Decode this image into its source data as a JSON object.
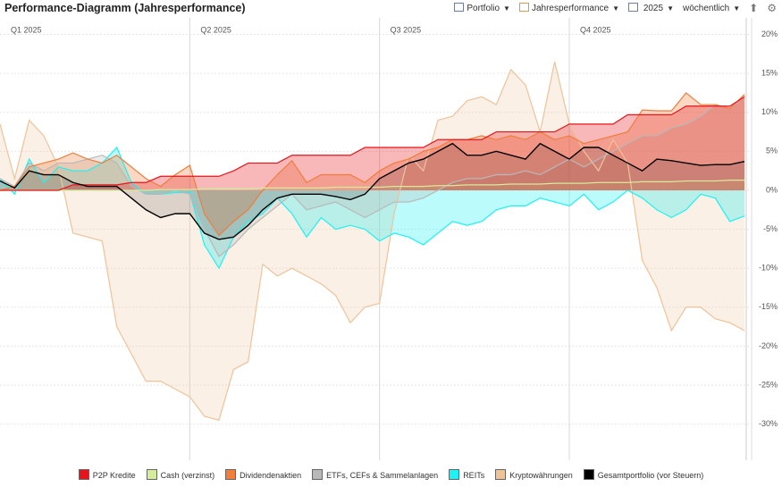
{
  "toolbar": [
    "Portfolio",
    "Jahresperformance",
    "2025",
    "wöchentlich"
  ],
  "chart_data": {
    "type": "area-line",
    "title": "Performance-Diagramm (Jahresperformance)",
    "categories": [
      "Q1 2025",
      null,
      null,
      null,
      null,
      null,
      null,
      null,
      null,
      null,
      null,
      null,
      null,
      "Q2 2025",
      null,
      null,
      null,
      null,
      null,
      null,
      null,
      null,
      null,
      null,
      null,
      null,
      "Q3 2025",
      null,
      null,
      null,
      null,
      null,
      null,
      null,
      null,
      null,
      null,
      null,
      null,
      "Q4 2025",
      null,
      null,
      null,
      null,
      null,
      null,
      null,
      null,
      null,
      null,
      null,
      null
    ],
    "ylim": [
      -34.6,
      21.6
    ],
    "yticks": [
      {
        "value": 20,
        "label": "20%"
      },
      {
        "value": 15,
        "label": "15%"
      },
      {
        "value": 10,
        "label": "10%"
      },
      {
        "value": 5,
        "label": "5%"
      },
      {
        "value": 0,
        "label": "0%"
      },
      {
        "value": -5,
        "label": "-5%"
      },
      {
        "value": -10,
        "label": "-10%"
      },
      {
        "value": -15,
        "label": "-15%"
      },
      {
        "value": -20,
        "label": "-20%"
      },
      {
        "value": -25,
        "label": "-25%"
      },
      {
        "value": -30,
        "label": "-30%"
      }
    ],
    "grid": true,
    "series": [
      {
        "name": "P2P Kredite",
        "color": "#e8141b",
        "values": [
          0,
          0,
          0,
          0,
          0,
          0.7,
          0.7,
          0.7,
          0.7,
          1,
          1,
          1.8,
          1.8,
          1.8,
          1.8,
          1.8,
          2.5,
          3.5,
          3.5,
          3.5,
          4.5,
          4.5,
          4.5,
          4.5,
          4.5,
          5.5,
          5.5,
          5.5,
          5.5,
          5.5,
          6.5,
          6.5,
          6.5,
          6.5,
          7.5,
          7.5,
          7.5,
          7.5,
          7.5,
          8.5,
          8.5,
          8.5,
          8.5,
          9.7,
          9.7,
          9.7,
          9.7,
          10.8,
          10.8,
          10.8,
          10.8,
          12
        ]
      },
      {
        "name": "Cash (verzinst)",
        "color": "#d4ec9c",
        "values": [
          0,
          0,
          0,
          0,
          0,
          0,
          0,
          0,
          0,
          0,
          0,
          0.1,
          0.1,
          0.1,
          0.2,
          0.2,
          0.2,
          0.2,
          0.3,
          0.3,
          0.3,
          0.3,
          0.3,
          0.4,
          0.4,
          0.4,
          0.4,
          0.5,
          0.5,
          0.5,
          0.6,
          0.6,
          0.7,
          0.7,
          0.7,
          0.8,
          0.8,
          0.8,
          0.9,
          0.9,
          0.9,
          1,
          1,
          1,
          1.1,
          1.1,
          1.1,
          1.2,
          1.2,
          1.2,
          1.3,
          1.3
        ]
      },
      {
        "name": "Dividendenaktien",
        "color": "#f07d3c",
        "values": [
          0,
          0.5,
          3,
          3.5,
          4,
          4.8,
          4,
          3.5,
          4.5,
          3,
          1.5,
          0.5,
          2,
          3.2,
          -3,
          -5.8,
          -4,
          -2.5,
          0,
          2,
          3.8,
          1,
          2,
          2,
          2,
          1,
          2.5,
          3.5,
          4,
          5,
          5.5,
          6.5,
          6.5,
          7,
          6.5,
          7,
          6.5,
          7.5,
          6.5,
          7,
          6,
          6.5,
          7,
          7.5,
          10.3,
          10.2,
          10.2,
          12.5,
          11,
          11,
          10.5,
          12.3
        ]
      },
      {
        "name": "ETFs, CEFs & Sammelanlagen",
        "color": "#b8b8b8",
        "values": [
          1.5,
          0.5,
          3.5,
          2.5,
          3.5,
          3.5,
          4,
          4.5,
          3.5,
          0.5,
          -0.5,
          -0.5,
          0,
          -0.5,
          -5,
          -8.5,
          -7,
          -5,
          -3.5,
          -2,
          -0.5,
          -2.5,
          -2,
          -1.5,
          -2.5,
          -3.5,
          -2.5,
          -1.5,
          -1.5,
          -1,
          0,
          1,
          1.5,
          1.5,
          2,
          2,
          2.5,
          2,
          3,
          4,
          3,
          4,
          5,
          6,
          7,
          7,
          8,
          8.5,
          9.5,
          11,
          10.5,
          12
        ]
      },
      {
        "name": "REITs",
        "color": "#1ef2f2",
        "values": [
          1.5,
          -0.5,
          4,
          1,
          3,
          2.5,
          2.5,
          3.5,
          5.5,
          1,
          -0.5,
          -0.5,
          -0.3,
          -0.3,
          -7,
          -10,
          -6,
          -4,
          -3,
          -1,
          -3,
          -6,
          -3.5,
          -5,
          -4.5,
          -5,
          -6.5,
          -5.5,
          -6,
          -7,
          -5.5,
          -4,
          -4.5,
          -4,
          -2.5,
          -2,
          -2,
          -1,
          -1.5,
          -2,
          -0.5,
          -2.5,
          -1.5,
          0,
          -1,
          -2.5,
          -3.5,
          -2.5,
          -0.5,
          -1,
          -4,
          -3.3
        ]
      },
      {
        "name": "Kryptowährungen",
        "color": "#eec39a",
        "values": [
          8.5,
          1.5,
          9,
          7,
          3,
          -5.5,
          -6,
          -6.5,
          -17.5,
          -21,
          -24.5,
          -24.5,
          -25.5,
          -26.5,
          -29,
          -29.5,
          -23,
          -22,
          -9.5,
          -11,
          -10,
          -11,
          -12,
          -13.5,
          -17,
          -15,
          -14.5,
          -3,
          4.5,
          2.5,
          9,
          9.5,
          11.5,
          12,
          11,
          15.5,
          13.5,
          7.5,
          16.5,
          8.5,
          5,
          2.5,
          6.5,
          3.5,
          -9,
          -12.5,
          -18,
          -15,
          -15,
          -16.5,
          -17,
          -18
        ]
      },
      {
        "name": "Gesamtportfolio (vor Steuern)",
        "color": "#000000",
        "values": [
          1.2,
          0.3,
          2.5,
          2,
          2,
          1,
          0.5,
          0.5,
          0.5,
          -1,
          -2.5,
          -3.5,
          -3,
          -3,
          -5.5,
          -6.3,
          -6,
          -4.5,
          -2.5,
          -1,
          -0.5,
          -0.5,
          -0.5,
          -0.8,
          -1.2,
          -0.5,
          1.5,
          2.5,
          3.5,
          4,
          5,
          6,
          4.5,
          4.5,
          5,
          4.5,
          4,
          6,
          5,
          4,
          5.5,
          5.5,
          4.5,
          3.5,
          2.5,
          4,
          3.8,
          3.5,
          3.2,
          3.3,
          3.3,
          3.7
        ]
      }
    ]
  }
}
